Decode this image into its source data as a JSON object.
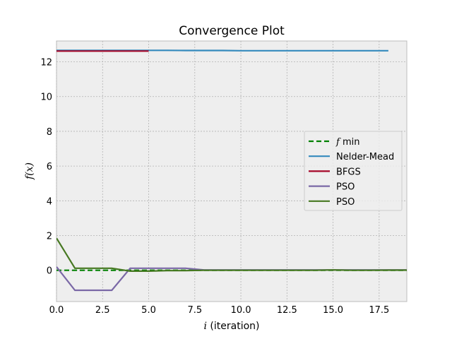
{
  "chart_data": {
    "type": "line",
    "title": "Convergence Plot",
    "xlabel_symbol": "i",
    "xlabel_text": "(iteration)",
    "ylabel_symbol": "f(x)",
    "xlim": [
      0,
      19
    ],
    "ylim": [
      -1.8,
      13.2
    ],
    "xticks": [
      0.0,
      2.5,
      5.0,
      7.5,
      10.0,
      12.5,
      15.0,
      17.5
    ],
    "xtick_labels": [
      "0.0",
      "2.5",
      "5.0",
      "7.5",
      "10.0",
      "12.5",
      "15.0",
      "17.5"
    ],
    "yticks": [
      0,
      2,
      4,
      6,
      8,
      10,
      12
    ],
    "ytick_labels": [
      "0",
      "2",
      "4",
      "6",
      "8",
      "10",
      "12"
    ],
    "grid": true,
    "legend_position": "center-right",
    "background_color": "#eeeeee",
    "series": [
      {
        "name": "f min",
        "name_symbol": "f",
        "name_text": "min",
        "color": "#008000",
        "dashed": true,
        "x": [
          0,
          19
        ],
        "y": [
          0.0,
          0.0
        ]
      },
      {
        "name": "Nelder-Mead",
        "color": "#348abd",
        "dashed": false,
        "x": [
          0,
          1,
          2,
          3,
          4,
          5,
          6,
          7,
          8,
          9,
          10,
          11,
          12,
          13,
          14,
          15,
          16,
          17,
          18
        ],
        "y": [
          12.66,
          12.66,
          12.66,
          12.66,
          12.66,
          12.66,
          12.66,
          12.65,
          12.65,
          12.65,
          12.64,
          12.64,
          12.64,
          12.64,
          12.64,
          12.64,
          12.64,
          12.64,
          12.64
        ]
      },
      {
        "name": "BFGS",
        "color": "#a60628",
        "dashed": false,
        "x": [
          0,
          1,
          2,
          3,
          4,
          5
        ],
        "y": [
          12.62,
          12.62,
          12.62,
          12.62,
          12.62,
          12.62
        ]
      },
      {
        "name": "PSO",
        "color": "#7a68a6",
        "dashed": false,
        "x": [
          0,
          1,
          2,
          3,
          4,
          5,
          6,
          7,
          8,
          9,
          10,
          11,
          12,
          13,
          14,
          15,
          16,
          17,
          18,
          19
        ],
        "y": [
          0.2,
          -1.15,
          -1.15,
          -1.15,
          0.12,
          0.12,
          0.12,
          0.12,
          0.02,
          0.02,
          0.02,
          0.02,
          0.02,
          0.02,
          0.02,
          0.02,
          0.02,
          0.02,
          0.02,
          0.02
        ]
      },
      {
        "name": "PSO",
        "color": "#467821",
        "dashed": false,
        "x": [
          0,
          1,
          2,
          3,
          4,
          5,
          6,
          7,
          8,
          9,
          10,
          11,
          12,
          13,
          14,
          15,
          16,
          17,
          18,
          19
        ],
        "y": [
          1.85,
          0.12,
          0.12,
          0.12,
          -0.05,
          -0.05,
          -0.02,
          -0.02,
          0.0,
          0.0,
          0.0,
          0.0,
          0.0,
          0.0,
          0.0,
          0.02,
          0.0,
          0.0,
          0.01,
          0.01
        ]
      }
    ]
  }
}
